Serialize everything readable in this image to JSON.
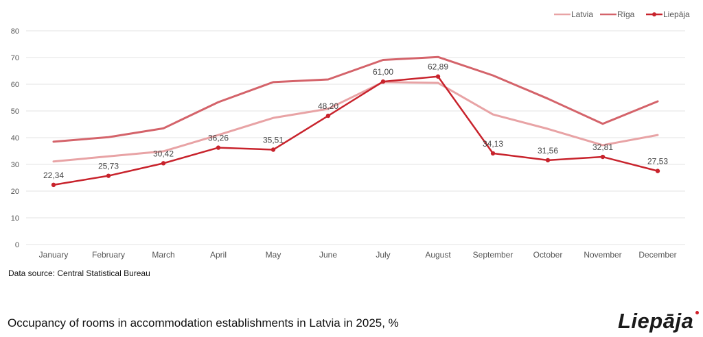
{
  "chart_data": {
    "type": "line",
    "title": "Occupancy of rooms in accommodation establishments in Latvia in 2025, %",
    "xlabel": "",
    "ylabel": "",
    "ylim": [
      0,
      80
    ],
    "yticks": [
      0,
      10,
      20,
      30,
      40,
      50,
      60,
      70,
      80
    ],
    "grid": true,
    "legend_position": "top-right",
    "categories": [
      "January",
      "February",
      "March",
      "April",
      "May",
      "June",
      "July",
      "August",
      "September",
      "October",
      "November",
      "December"
    ],
    "series": [
      {
        "name": "Latvia",
        "color": "#e8a3a5",
        "markers": false,
        "values": [
          31.1,
          33.0,
          34.9,
          41.0,
          47.4,
          50.8,
          60.8,
          60.5,
          48.7,
          43.3,
          37.2,
          41.0
        ]
      },
      {
        "name": "Rīga",
        "color": "#d4636a",
        "markers": false,
        "values": [
          38.5,
          40.2,
          43.5,
          53.3,
          60.8,
          61.8,
          69.1,
          70.2,
          63.3,
          54.6,
          45.2,
          53.6
        ]
      },
      {
        "name": "Liepāja",
        "color": "#c8232c",
        "markers": true,
        "values": [
          22.34,
          25.73,
          30.42,
          36.26,
          35.51,
          48.2,
          61.0,
          62.89,
          34.13,
          31.56,
          32.81,
          27.53
        ],
        "data_labels": [
          "22,34",
          "25,73",
          "30,42",
          "36,26",
          "35,51",
          "48,20",
          "61,00",
          "62,89",
          "34,13",
          "31,56",
          "32,81",
          "27,53"
        ]
      }
    ]
  },
  "footer": {
    "source": "Data source: Central Statistical Bureau",
    "title": "Occupancy of rooms in accommodation establishments in Latvia in 2025, %",
    "logo_text": "Liepāja",
    "logo_dot_color": "#d0202a"
  }
}
